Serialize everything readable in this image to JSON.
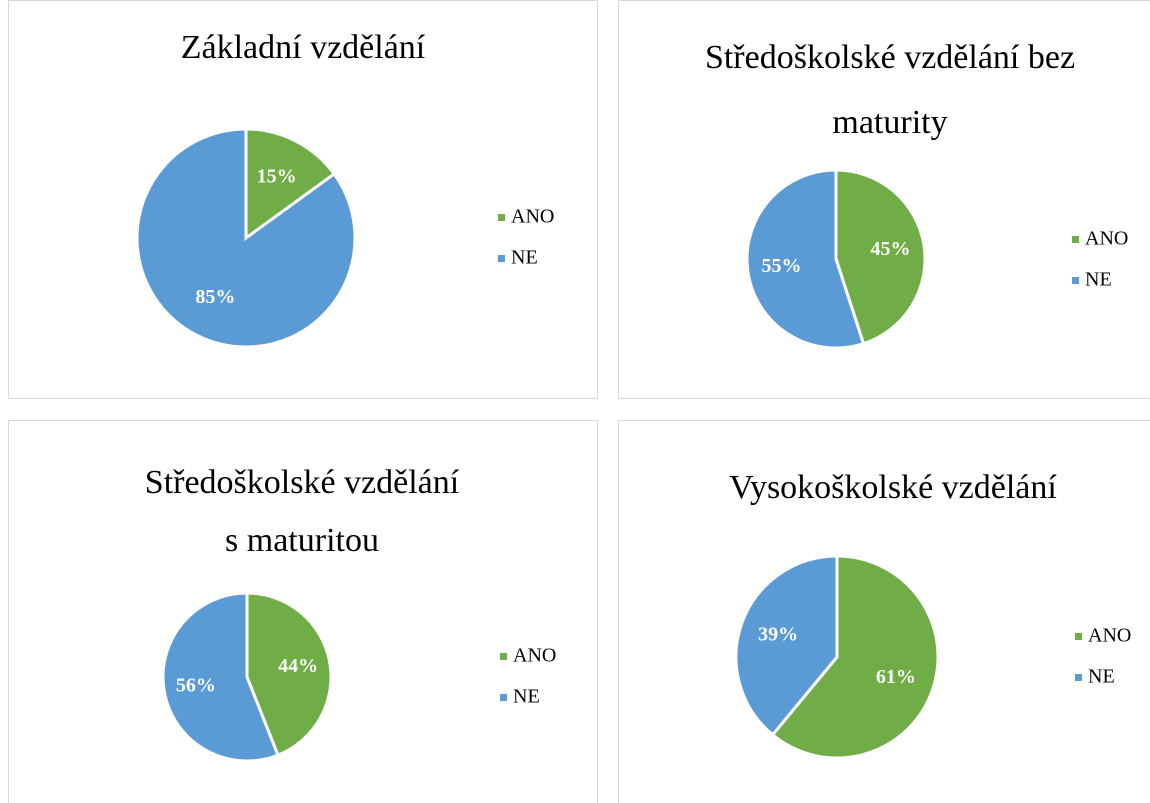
{
  "chart_data": [
    {
      "type": "pie",
      "title": [
        "Základní vzdělání"
      ],
      "categories": [
        "ANO",
        "NE"
      ],
      "values": [
        15,
        85
      ],
      "value_labels": [
        "15%",
        "85%"
      ],
      "colors": [
        "#70ad47",
        "#5b9bd5"
      ],
      "legend": "right"
    },
    {
      "type": "pie",
      "title": [
        "Středoškolské vzdělání bez",
        "maturity"
      ],
      "categories": [
        "ANO",
        "NE"
      ],
      "values": [
        45,
        55
      ],
      "value_labels": [
        "45%",
        "55%"
      ],
      "colors": [
        "#70ad47",
        "#5b9bd5"
      ],
      "legend": "right"
    },
    {
      "type": "pie",
      "title": [
        "Středoškolské vzdělání",
        "s maturitou"
      ],
      "categories": [
        "ANO",
        "NE"
      ],
      "values": [
        44,
        56
      ],
      "value_labels": [
        "44%",
        "56%"
      ],
      "colors": [
        "#70ad47",
        "#5b9bd5"
      ],
      "legend": "right"
    },
    {
      "type": "pie",
      "title": [
        "Vysokoškolské vzdělání"
      ],
      "categories": [
        "ANO",
        "NE"
      ],
      "values": [
        61,
        39
      ],
      "value_labels": [
        "61%",
        "39%"
      ],
      "colors": [
        "#70ad47",
        "#5b9bd5"
      ],
      "legend": "right"
    }
  ]
}
